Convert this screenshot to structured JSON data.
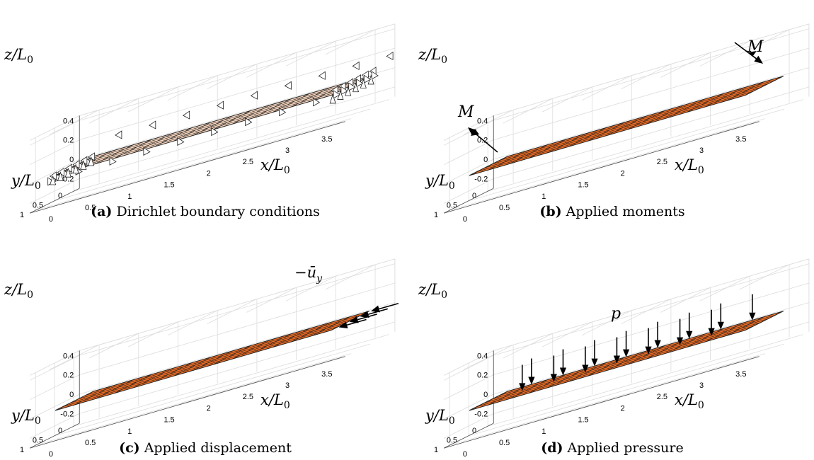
{
  "panels": [
    {
      "id": "a",
      "caption_tag": "(a)",
      "caption_text": "Dirichlet boundary conditions",
      "fill_color": "#fbd9c1",
      "load": "supports",
      "load_label": ""
    },
    {
      "id": "b",
      "caption_tag": "(b)",
      "caption_text": "Applied moments",
      "fill_color": "#f26d22",
      "load": "moments",
      "load_label": "M"
    },
    {
      "id": "c",
      "caption_tag": "(c)",
      "caption_text": "Applied displacement",
      "fill_color": "#f26d22",
      "load": "displacement",
      "load_label": "−ū",
      "load_label_sub": "y"
    },
    {
      "id": "d",
      "caption_tag": "(d)",
      "caption_text": "Applied pressure",
      "fill_color": "#f26d22",
      "load": "pressure",
      "load_label": "p"
    }
  ],
  "axes": {
    "x_label": "x/L",
    "y_label": "y/L",
    "z_label": "z/L",
    "label_sub": "0",
    "x_ticks": [
      "0",
      "0.5",
      "1",
      "1.5",
      "2",
      "2.5",
      "3",
      "3.5"
    ],
    "y_ticks": [
      "0",
      "0.5",
      "1"
    ],
    "z_ticks": [
      "0.4",
      "0.2",
      "0",
      "-0.2"
    ]
  },
  "colors": {
    "grid_line": "#dcdcdc",
    "axis_line": "#555555",
    "mesh_line": "#222222",
    "support_fill": "#ffffff",
    "arrow": "#000000"
  }
}
